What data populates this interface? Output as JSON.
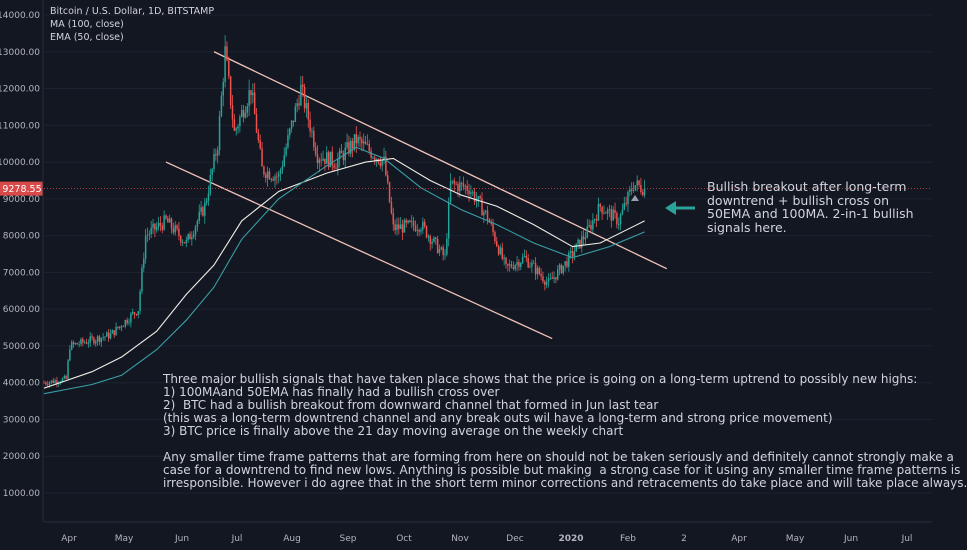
{
  "legend": {
    "title": "Bitcoin / U.S. Dollar, 1D, BITSTAMP",
    "ma": "MA (100, close)",
    "ema": "EMA (50, close)"
  },
  "colors": {
    "background": "#131722",
    "up": "#26a69a",
    "down": "#ef5350",
    "ma": "#f0ede6",
    "ema": "#3a9ea5",
    "channel": "#f2c3b8",
    "price_line": "#d84a4a",
    "arrow": "#2ba39b",
    "axis_text": "#b2b5be"
  },
  "callout_text": "Bullish breakout after long-term\ndowntrend + bullish cross on\n50EMA and 100MA. 2-in-1 bullish\nsignals here.",
  "note_text": "Three major bullish signals that have taken place shows that the price is going on a long-term uptrend to possibly new highs:\n1) 100MAand 50EMA has finally had a bullish cross over\n2)  BTC had a bullish breakout from downward channel that formed in Jun last tear\n(this was a long-term downtrend channel and any break outs wil have a long-term and strong price movement)\n3) BTC price is finally above the 21 day moving average on the weekly chart\n\nAny smaller time frame patterns that are forming from here on should not be taken seriously and definitely cannot strongly make a\ncase for a downtrend to find new lows. Anything is possible but making  a strong case for it using any smaller time frame patterns is\nirresponsible. However i do agree that in the short term minor corrections and retracements do take place and will take place always.",
  "chart_data": {
    "type": "candlestick",
    "title": "Bitcoin / U.S. Dollar, 1D, BITSTAMP",
    "current_price": "9278.55",
    "y_ticks": [
      "14000.00",
      "13000.00",
      "12000.00",
      "11000.00",
      "10000.00",
      "9000.00",
      "8000.00",
      "7000.00",
      "6000.00",
      "5000.00",
      "4000.00",
      "3000.00",
      "2000.00",
      "1000.00"
    ],
    "ylim": [
      0,
      14000
    ],
    "x_ticks": [
      "Apr",
      "May",
      "Jun",
      "Jul",
      "Aug",
      "Sep",
      "Oct",
      "Nov",
      "Dec",
      "2020",
      "Feb",
      "2",
      "Apr",
      "May",
      "Jun",
      "Jul"
    ],
    "price_path": [
      [
        "2019-03-20",
        4000
      ],
      [
        "2019-04-01",
        4100
      ],
      [
        "2019-04-03",
        5000
      ],
      [
        "2019-04-25",
        5300
      ],
      [
        "2019-05-10",
        6000
      ],
      [
        "2019-05-14",
        8000
      ],
      [
        "2019-05-25",
        8400
      ],
      [
        "2019-06-05",
        7800
      ],
      [
        "2019-06-15",
        8800
      ],
      [
        "2019-06-22",
        10500
      ],
      [
        "2019-06-26",
        13000
      ],
      [
        "2019-07-01",
        10800
      ],
      [
        "2019-07-10",
        12000
      ],
      [
        "2019-07-16",
        9800
      ],
      [
        "2019-07-25",
        9600
      ],
      [
        "2019-08-06",
        12000
      ],
      [
        "2019-08-15",
        10200
      ],
      [
        "2019-08-25",
        10000
      ],
      [
        "2019-09-05",
        10600
      ],
      [
        "2019-09-20",
        10000
      ],
      [
        "2019-09-25",
        8200
      ],
      [
        "2019-10-10",
        8300
      ],
      [
        "2019-10-23",
        7400
      ],
      [
        "2019-10-26",
        9400
      ],
      [
        "2019-11-05",
        9300
      ],
      [
        "2019-11-15",
        8500
      ],
      [
        "2019-11-25",
        7100
      ],
      [
        "2019-12-05",
        7400
      ],
      [
        "2019-12-18",
        6700
      ],
      [
        "2019-12-28",
        7300
      ],
      [
        "2020-01-08",
        8100
      ],
      [
        "2020-01-15",
        8800
      ],
      [
        "2020-01-25",
        8400
      ],
      [
        "2020-02-02",
        9400
      ],
      [
        "2020-02-08",
        9278
      ]
    ],
    "series": [
      {
        "name": "MA (100, close)",
        "points": [
          [
            "2019-03-20",
            3850
          ],
          [
            "2019-04-15",
            4300
          ],
          [
            "2019-05-01",
            4700
          ],
          [
            "2019-05-20",
            5400
          ],
          [
            "2019-06-05",
            6400
          ],
          [
            "2019-06-20",
            7200
          ],
          [
            "2019-07-05",
            8400
          ],
          [
            "2019-07-25",
            9200
          ],
          [
            "2019-08-20",
            9700
          ],
          [
            "2019-09-10",
            10000
          ],
          [
            "2019-09-25",
            10100
          ],
          [
            "2019-10-15",
            9500
          ],
          [
            "2019-11-01",
            9100
          ],
          [
            "2019-11-20",
            8800
          ],
          [
            "2019-12-10",
            8300
          ],
          [
            "2019-12-31",
            7700
          ],
          [
            "2020-01-15",
            7800
          ],
          [
            "2020-02-08",
            8400
          ]
        ]
      },
      {
        "name": "EMA (50, close)",
        "points": [
          [
            "2019-03-20",
            3700
          ],
          [
            "2019-04-15",
            3950
          ],
          [
            "2019-05-01",
            4200
          ],
          [
            "2019-05-20",
            4900
          ],
          [
            "2019-06-05",
            5700
          ],
          [
            "2019-06-20",
            6600
          ],
          [
            "2019-07-05",
            7900
          ],
          [
            "2019-07-25",
            9000
          ],
          [
            "2019-08-20",
            9900
          ],
          [
            "2019-09-05",
            10400
          ],
          [
            "2019-09-20",
            10100
          ],
          [
            "2019-10-10",
            9300
          ],
          [
            "2019-11-01",
            8700
          ],
          [
            "2019-11-20",
            8300
          ],
          [
            "2019-12-10",
            7800
          ],
          [
            "2019-12-31",
            7400
          ],
          [
            "2020-01-20",
            7700
          ],
          [
            "2020-02-08",
            8100
          ]
        ]
      }
    ],
    "channel_upper": [
      [
        "2019-06-20",
        13000
      ],
      [
        "2020-02-20",
        7100
      ]
    ],
    "channel_lower": [
      [
        "2019-05-25",
        10000
      ],
      [
        "2019-12-20",
        5200
      ]
    ]
  }
}
